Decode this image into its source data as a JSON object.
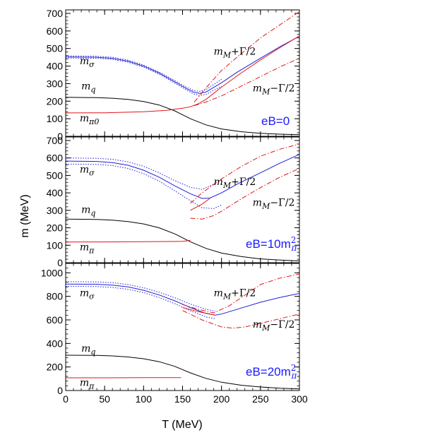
{
  "figure": {
    "xlabel": "T (MeV)",
    "ylabel": "m (MeV)"
  },
  "colors": {
    "sigma": "#1f1fd6",
    "pi": "#e0161b",
    "quark": "#000000",
    "eb_label": "#1a1aff"
  },
  "chart_data": [
    {
      "type": "line",
      "title": "eB=0",
      "xlabel": "T (MeV)",
      "ylabel": "m (MeV)",
      "xlim": [
        0,
        300
      ],
      "ylim": [
        0,
        720
      ],
      "xticks": [
        0,
        50,
        100,
        150,
        200,
        250,
        300
      ],
      "yticks": [
        0,
        100,
        200,
        300,
        400,
        500,
        600,
        700
      ],
      "annotations": [
        {
          "text": "mσ",
          "x": 18,
          "y": 410
        },
        {
          "text": "mq",
          "x": 20,
          "y": 268
        },
        {
          "text": "mπ0",
          "x": 18,
          "y": 84
        },
        {
          "text": "mM+Γ/2",
          "x": 190,
          "y": 465
        },
        {
          "text": "mM−Γ/2",
          "x": 240,
          "y": 255
        }
      ],
      "series": [
        {
          "name": "mσ",
          "style": "solid",
          "color": "#1f1fd6",
          "x": [
            0,
            40,
            60,
            80,
            100,
            120,
            140,
            155,
            165,
            172,
            180,
            200,
            220,
            250,
            275,
            300
          ],
          "y": [
            452,
            450,
            444,
            428,
            400,
            360,
            310,
            272,
            250,
            244,
            252,
            305,
            365,
            445,
            510,
            570
          ]
        },
        {
          "name": "",
          "style": "dotted",
          "color": "#1f1fd6",
          "x": [
            0,
            40,
            60,
            80,
            100,
            120,
            140,
            155,
            165,
            172,
            180,
            200
          ],
          "y": [
            458,
            456,
            450,
            434,
            406,
            366,
            317,
            280,
            260,
            256,
            266,
            325
          ]
        },
        {
          "name": "",
          "style": "dotted",
          "color": "#1f1fd6",
          "x": [
            0,
            40,
            60,
            80,
            100,
            120,
            140,
            155,
            165,
            172,
            180,
            200
          ],
          "y": [
            446,
            444,
            438,
            422,
            394,
            354,
            303,
            264,
            240,
            232,
            238,
            285
          ]
        },
        {
          "name": "mq",
          "style": "solid",
          "color": "#000000",
          "x": [
            0,
            40,
            60,
            80,
            100,
            120,
            140,
            160,
            180,
            200,
            225,
            250,
            275,
            300
          ],
          "y": [
            222,
            220,
            217,
            210,
            198,
            178,
            145,
            100,
            65,
            42,
            26,
            17,
            12,
            9
          ]
        },
        {
          "name": "mπ0",
          "style": "solid",
          "color": "#e0161b",
          "x": [
            0,
            50,
            100,
            130,
            150,
            160,
            170,
            180,
            200,
            225,
            250,
            275,
            300
          ],
          "y": [
            133,
            134,
            140,
            148,
            160,
            168,
            185,
            210,
            280,
            360,
            435,
            505,
            572
          ]
        },
        {
          "name": "mM+Γ/2",
          "style": "dashed",
          "color": "#e0161b",
          "x": [
            165,
            180,
            200,
            225,
            250,
            275,
            300
          ],
          "y": [
            195,
            275,
            375,
            470,
            560,
            635,
            710
          ]
        },
        {
          "name": "mM−Γ/2",
          "style": "dashed",
          "color": "#e0161b",
          "x": [
            165,
            180,
            200,
            225,
            250,
            275,
            300
          ],
          "y": [
            175,
            195,
            230,
            285,
            340,
            395,
            445
          ]
        }
      ]
    },
    {
      "type": "line",
      "title": "eB=10m",
      "xlabel": "T (MeV)",
      "ylabel": "m (MeV)",
      "xlim": [
        0,
        300
      ],
      "ylim": [
        0,
        720
      ],
      "xticks": [
        0,
        50,
        100,
        150,
        200,
        250,
        300
      ],
      "yticks": [
        0,
        100,
        200,
        300,
        400,
        500,
        600,
        700
      ],
      "annotations": [
        {
          "text": "mσ",
          "x": 18,
          "y": 515
        },
        {
          "text": "mq",
          "x": 20,
          "y": 285
        },
        {
          "text": "mπ",
          "x": 18,
          "y": 70
        },
        {
          "text": "mM+Γ/2",
          "x": 190,
          "y": 445
        },
        {
          "text": "mM−Γ/2",
          "x": 240,
          "y": 325
        }
      ],
      "series": [
        {
          "name": "mσ",
          "style": "solid",
          "color": "#1f1fd6",
          "x": [
            0,
            40,
            60,
            80,
            100,
            120,
            140,
            160,
            175,
            185,
            200,
            220,
            250,
            275,
            300
          ],
          "y": [
            582,
            580,
            573,
            558,
            530,
            490,
            440,
            395,
            368,
            370,
            400,
            450,
            515,
            570,
            620
          ]
        },
        {
          "name": "",
          "style": "dotted",
          "color": "#1f1fd6",
          "x": [
            0,
            40,
            60,
            80,
            100,
            120,
            140,
            160,
            175,
            190
          ],
          "y": [
            600,
            598,
            592,
            578,
            552,
            515,
            470,
            432,
            420,
            450
          ]
        },
        {
          "name": "",
          "style": "dotted",
          "color": "#1f1fd6",
          "x": [
            0,
            40,
            60,
            80,
            100,
            120,
            140,
            160,
            175,
            190,
            200
          ],
          "y": [
            565,
            563,
            556,
            540,
            510,
            467,
            412,
            355,
            315,
            310,
            330
          ]
        },
        {
          "name": "mq",
          "style": "solid",
          "color": "#000000",
          "x": [
            0,
            40,
            60,
            80,
            100,
            120,
            140,
            160,
            180,
            200,
            225,
            250,
            275,
            300
          ],
          "y": [
            250,
            248,
            244,
            236,
            222,
            200,
            165,
            120,
            82,
            55,
            35,
            22,
            15,
            10
          ]
        },
        {
          "name": "mπ",
          "style": "solid",
          "color": "#e0161b",
          "x": [
            0,
            50,
            100,
            150,
            160
          ],
          "y": [
            118,
            119,
            120,
            122,
            128
          ]
        },
        {
          "name": "mM+Γ/2",
          "style": "dashed",
          "color": "#e0161b",
          "x": [
            160,
            175,
            200,
            225,
            250,
            275,
            300
          ],
          "y": [
            340,
            400,
            480,
            550,
            610,
            650,
            680
          ]
        },
        {
          "name": "mM−Γ/2",
          "style": "dashed",
          "color": "#e0161b",
          "x": [
            160,
            175,
            190,
            200,
            225,
            250,
            275,
            300
          ],
          "y": [
            255,
            250,
            270,
            295,
            365,
            430,
            490,
            540
          ]
        },
        {
          "name": "",
          "style": "solid",
          "color": "#e0161b",
          "x": [
            160,
            175,
            185
          ],
          "y": [
            300,
            335,
            368
          ]
        }
      ]
    },
    {
      "type": "line",
      "title": "eB=20m",
      "xlabel": "T (MeV)",
      "ylabel": "m (MeV)",
      "xlim": [
        0,
        300
      ],
      "ylim": [
        0,
        1080
      ],
      "xticks": [
        0,
        50,
        100,
        150,
        200,
        250,
        300
      ],
      "yticks": [
        0,
        200,
        400,
        600,
        800,
        1000
      ],
      "annotations": [
        {
          "text": "mσ",
          "x": 18,
          "y": 800
        },
        {
          "text": "mq",
          "x": 20,
          "y": 330
        },
        {
          "text": "mπ",
          "x": 18,
          "y": 40
        },
        {
          "text": "mM+Γ/2",
          "x": 190,
          "y": 800
        },
        {
          "text": "mM−Γ/2",
          "x": 240,
          "y": 535
        }
      ],
      "series": [
        {
          "name": "mσ",
          "style": "solid",
          "color": "#1f1fd6",
          "x": [
            0,
            40,
            60,
            80,
            100,
            120,
            140,
            160,
            180,
            192,
            200,
            225,
            250,
            275,
            300
          ],
          "y": [
            905,
            903,
            896,
            880,
            852,
            812,
            762,
            705,
            655,
            640,
            650,
            700,
            750,
            790,
            825
          ]
        },
        {
          "name": "",
          "style": "dotted",
          "color": "#1f1fd6",
          "x": [
            0,
            40,
            60,
            80,
            100,
            120,
            140,
            160,
            180,
            192
          ],
          "y": [
            925,
            923,
            916,
            900,
            873,
            835,
            788,
            735,
            690,
            675
          ]
        },
        {
          "name": "",
          "style": "dotted",
          "color": "#1f1fd6",
          "x": [
            0,
            40,
            60,
            80,
            100,
            120,
            140,
            160,
            180,
            192
          ],
          "y": [
            885,
            883,
            876,
            860,
            832,
            790,
            738,
            678,
            625,
            610
          ]
        },
        {
          "name": "mq",
          "style": "solid",
          "color": "#000000",
          "x": [
            0,
            40,
            60,
            80,
            100,
            120,
            140,
            160,
            180,
            200,
            225,
            250,
            275,
            300
          ],
          "y": [
            300,
            298,
            294,
            285,
            270,
            245,
            205,
            150,
            103,
            70,
            45,
            30,
            20,
            14
          ]
        },
        {
          "name": "mπ",
          "style": "solid",
          "color": "#e0161b",
          "x": [
            0,
            50,
            100,
            148
          ],
          "y": [
            108,
            108,
            109,
            110
          ]
        },
        {
          "name": "mM+Γ/2",
          "style": "dashed",
          "color": "#e0161b",
          "x": [
            150,
            170,
            190,
            210,
            230,
            250,
            275,
            300
          ],
          "y": [
            730,
            690,
            660,
            720,
            810,
            900,
            955,
            990
          ]
        },
        {
          "name": "mM−Γ/2",
          "style": "dashed",
          "color": "#e0161b",
          "x": [
            150,
            175,
            200,
            215,
            230,
            250,
            275,
            300
          ],
          "y": [
            680,
            600,
            540,
            530,
            540,
            570,
            610,
            650
          ]
        },
        {
          "name": "",
          "style": "solid",
          "color": "#e0161b",
          "x": [
            150,
            170,
            192
          ],
          "y": [
            705,
            670,
            640
          ]
        }
      ]
    }
  ]
}
